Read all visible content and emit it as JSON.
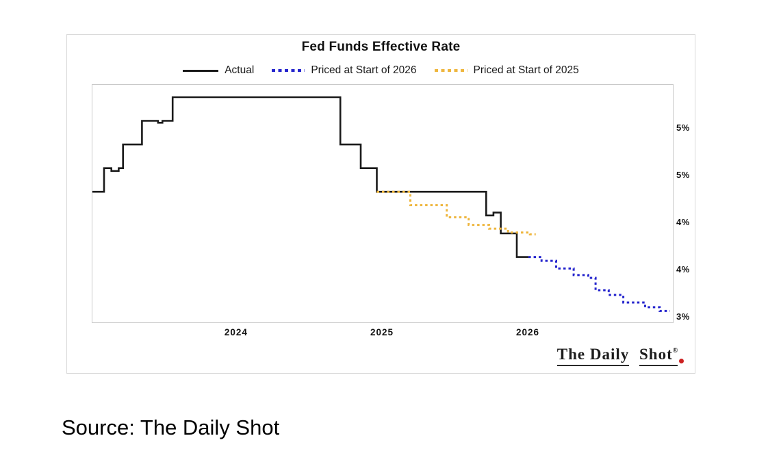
{
  "page": {
    "source_caption": "Source: The Daily Shot"
  },
  "card": {
    "title": "Fed Funds Effective Rate",
    "legend": [
      {
        "label": "Actual",
        "style": "solid",
        "color": "#1a1a1a"
      },
      {
        "label": "Priced at Start of 2026",
        "style": "dotted",
        "color": "#2424cd"
      },
      {
        "label": "Priced at Start of 2025",
        "style": "dotted",
        "color": "#eeb63e"
      }
    ],
    "logo": {
      "part1": "The Daily",
      "part2": "Shot",
      "mark": "®",
      "dot_color": "#cc2020"
    }
  },
  "chart_data": {
    "type": "line",
    "title": "Fed Funds Effective Rate",
    "subtitle": "",
    "xlabel": "",
    "ylabel": "",
    "grid": false,
    "legend_position": "top",
    "x_domain": [
      2023.01,
      2026.99
    ],
    "y_domain": [
      2.95,
      5.46
    ],
    "x_ticks": [
      {
        "t": 2024,
        "label": "2024"
      },
      {
        "t": 2025,
        "label": "2025"
      },
      {
        "t": 2026,
        "label": "2026"
      }
    ],
    "y_ticks": [
      {
        "v": 5.0,
        "label": "5%"
      },
      {
        "v": 4.5,
        "label": "5%"
      },
      {
        "v": 4.0,
        "label": "4%"
      },
      {
        "v": 3.5,
        "label": "4%"
      },
      {
        "v": 3.0,
        "label": "3%"
      }
    ],
    "series": [
      {
        "name": "Actual",
        "style": "solid",
        "color": "#1a1a1a",
        "points": [
          [
            2023.01,
            4.33
          ],
          [
            2023.09,
            4.58
          ],
          [
            2023.14,
            4.55
          ],
          [
            2023.19,
            4.58
          ],
          [
            2023.22,
            4.83
          ],
          [
            2023.35,
            5.08
          ],
          [
            2023.46,
            5.06
          ],
          [
            2023.49,
            5.08
          ],
          [
            2023.56,
            5.33
          ],
          [
            2024.71,
            4.83
          ],
          [
            2024.85,
            4.58
          ],
          [
            2024.96,
            4.33
          ],
          [
            2025.71,
            4.08
          ],
          [
            2025.76,
            4.11
          ],
          [
            2025.81,
            3.89
          ],
          [
            2025.92,
            3.64
          ]
        ],
        "end_t": 2026.0
      },
      {
        "name": "Priced at Start of 2026",
        "style": "dotted",
        "color": "#2424cd",
        "points": [
          [
            2026.0,
            3.64
          ],
          [
            2026.09,
            3.6
          ],
          [
            2026.19,
            3.52
          ],
          [
            2026.31,
            3.45
          ],
          [
            2026.41,
            3.42
          ],
          [
            2026.46,
            3.29
          ],
          [
            2026.55,
            3.24
          ],
          [
            2026.65,
            3.16
          ],
          [
            2026.8,
            3.11
          ],
          [
            2026.9,
            3.07
          ]
        ],
        "end_t": 2026.97
      },
      {
        "name": "Priced at Start of 2025",
        "style": "dotted",
        "color": "#eeb63e",
        "points": [
          [
            2024.96,
            4.33
          ],
          [
            2025.19,
            4.19
          ],
          [
            2025.44,
            4.06
          ],
          [
            2025.59,
            3.98
          ],
          [
            2025.73,
            3.94
          ],
          [
            2025.86,
            3.9
          ],
          [
            2026.01,
            3.88
          ]
        ],
        "end_t": 2026.05
      }
    ]
  }
}
